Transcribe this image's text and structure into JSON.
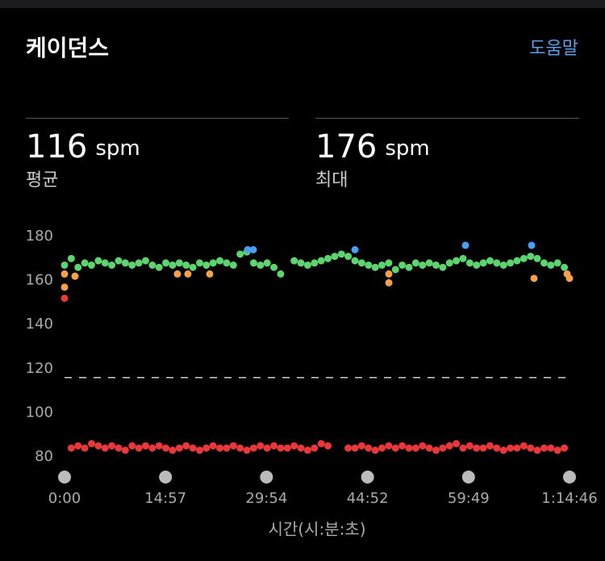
{
  "header": {
    "title": "케이던스",
    "help": "도움말"
  },
  "stats": [
    {
      "value": 116,
      "unit": "spm",
      "label": "평균"
    },
    {
      "value": 176,
      "unit": "spm",
      "label": "최대"
    }
  ],
  "chart_data": {
    "type": "scatter",
    "x_label": "시간(시:분:초)",
    "xlim": [
      0,
      4486
    ],
    "ylim": [
      80,
      180
    ],
    "xticks": [
      {
        "value": 0,
        "label": "0:00"
      },
      {
        "value": 897,
        "label": "14:57"
      },
      {
        "value": 1794,
        "label": "29:54"
      },
      {
        "value": 2692,
        "label": "44:52"
      },
      {
        "value": 3589,
        "label": "59:49"
      },
      {
        "value": 4486,
        "label": "1:14:46"
      }
    ],
    "yticks": [
      80,
      100,
      120,
      140,
      160,
      180
    ],
    "series": [
      {
        "color": "#5dd46f",
        "x": [
          0,
          60,
          120,
          180,
          240,
          300,
          360,
          420,
          480,
          540,
          600,
          660,
          720,
          780,
          840,
          900,
          960,
          1020,
          1080,
          1140,
          1200,
          1260,
          1320,
          1380,
          1440,
          1500,
          1560,
          1620,
          1680,
          1740,
          1800,
          1860,
          1920,
          2040,
          2100,
          2160,
          2220,
          2280,
          2340,
          2400,
          2460,
          2520,
          2580,
          2640,
          2700,
          2760,
          2820,
          2880,
          2940,
          3000,
          3060,
          3120,
          3180,
          3240,
          3300,
          3360,
          3420,
          3480,
          3540,
          3600,
          3660,
          3720,
          3780,
          3840,
          3900,
          3960,
          4020,
          4080,
          4140,
          4200,
          4260,
          4320,
          4380,
          4440
        ],
        "values": [
          167,
          170,
          166,
          168,
          167,
          169,
          168,
          167,
          169,
          168,
          167,
          168,
          169,
          167,
          166,
          168,
          167,
          168,
          167,
          166,
          168,
          167,
          168,
          169,
          168,
          167,
          172,
          173,
          168,
          167,
          168,
          166,
          163,
          169,
          168,
          167,
          168,
          169,
          170,
          171,
          172,
          171,
          169,
          168,
          167,
          166,
          167,
          168,
          165,
          167,
          166,
          168,
          167,
          168,
          167,
          166,
          168,
          169,
          170,
          168,
          167,
          168,
          169,
          168,
          167,
          168,
          169,
          170,
          171,
          170,
          168,
          167,
          168,
          166
        ]
      },
      {
        "color": "#e8383a",
        "x": [
          0,
          60,
          120,
          180,
          240,
          300,
          360,
          420,
          480,
          540,
          600,
          660,
          720,
          780,
          840,
          900,
          960,
          1020,
          1080,
          1140,
          1200,
          1260,
          1320,
          1380,
          1440,
          1500,
          1560,
          1620,
          1680,
          1740,
          1800,
          1860,
          1920,
          1980,
          2040,
          2100,
          2160,
          2220,
          2280,
          2340,
          2520,
          2580,
          2640,
          2700,
          2760,
          2820,
          2880,
          2940,
          3000,
          3060,
          3120,
          3180,
          3240,
          3300,
          3360,
          3420,
          3480,
          3540,
          3600,
          3660,
          3720,
          3780,
          3840,
          3900,
          3960,
          4020,
          4080,
          4140,
          4200,
          4260,
          4320,
          4380,
          4440
        ],
        "values": [
          152,
          84,
          85,
          84,
          86,
          85,
          84,
          85,
          84,
          83,
          85,
          84,
          85,
          84,
          85,
          84,
          83,
          84,
          85,
          84,
          83,
          84,
          85,
          84,
          84,
          85,
          84,
          83,
          84,
          85,
          84,
          85,
          84,
          84,
          85,
          84,
          83,
          84,
          86,
          85,
          84,
          84,
          85,
          84,
          83,
          84,
          85,
          84,
          85,
          84,
          84,
          85,
          84,
          83,
          84,
          85,
          86,
          84,
          85,
          84,
          84,
          85,
          84,
          83,
          84,
          84,
          85,
          84,
          83,
          84,
          84,
          83,
          84
        ]
      },
      {
        "color": "#f5a04a",
        "x": [
          0,
          0,
          93,
          1003,
          1096,
          1290,
          2881,
          2881,
          4171,
          4465,
          4486
        ],
        "values": [
          163,
          157,
          162,
          163,
          163,
          163,
          163,
          159,
          161,
          163,
          161
        ]
      },
      {
        "color": "#4a9ff5",
        "x": [
          1627,
          1677,
          2580,
          3562,
          4149
        ],
        "values": [
          174,
          174,
          174,
          176,
          176
        ]
      }
    ]
  }
}
